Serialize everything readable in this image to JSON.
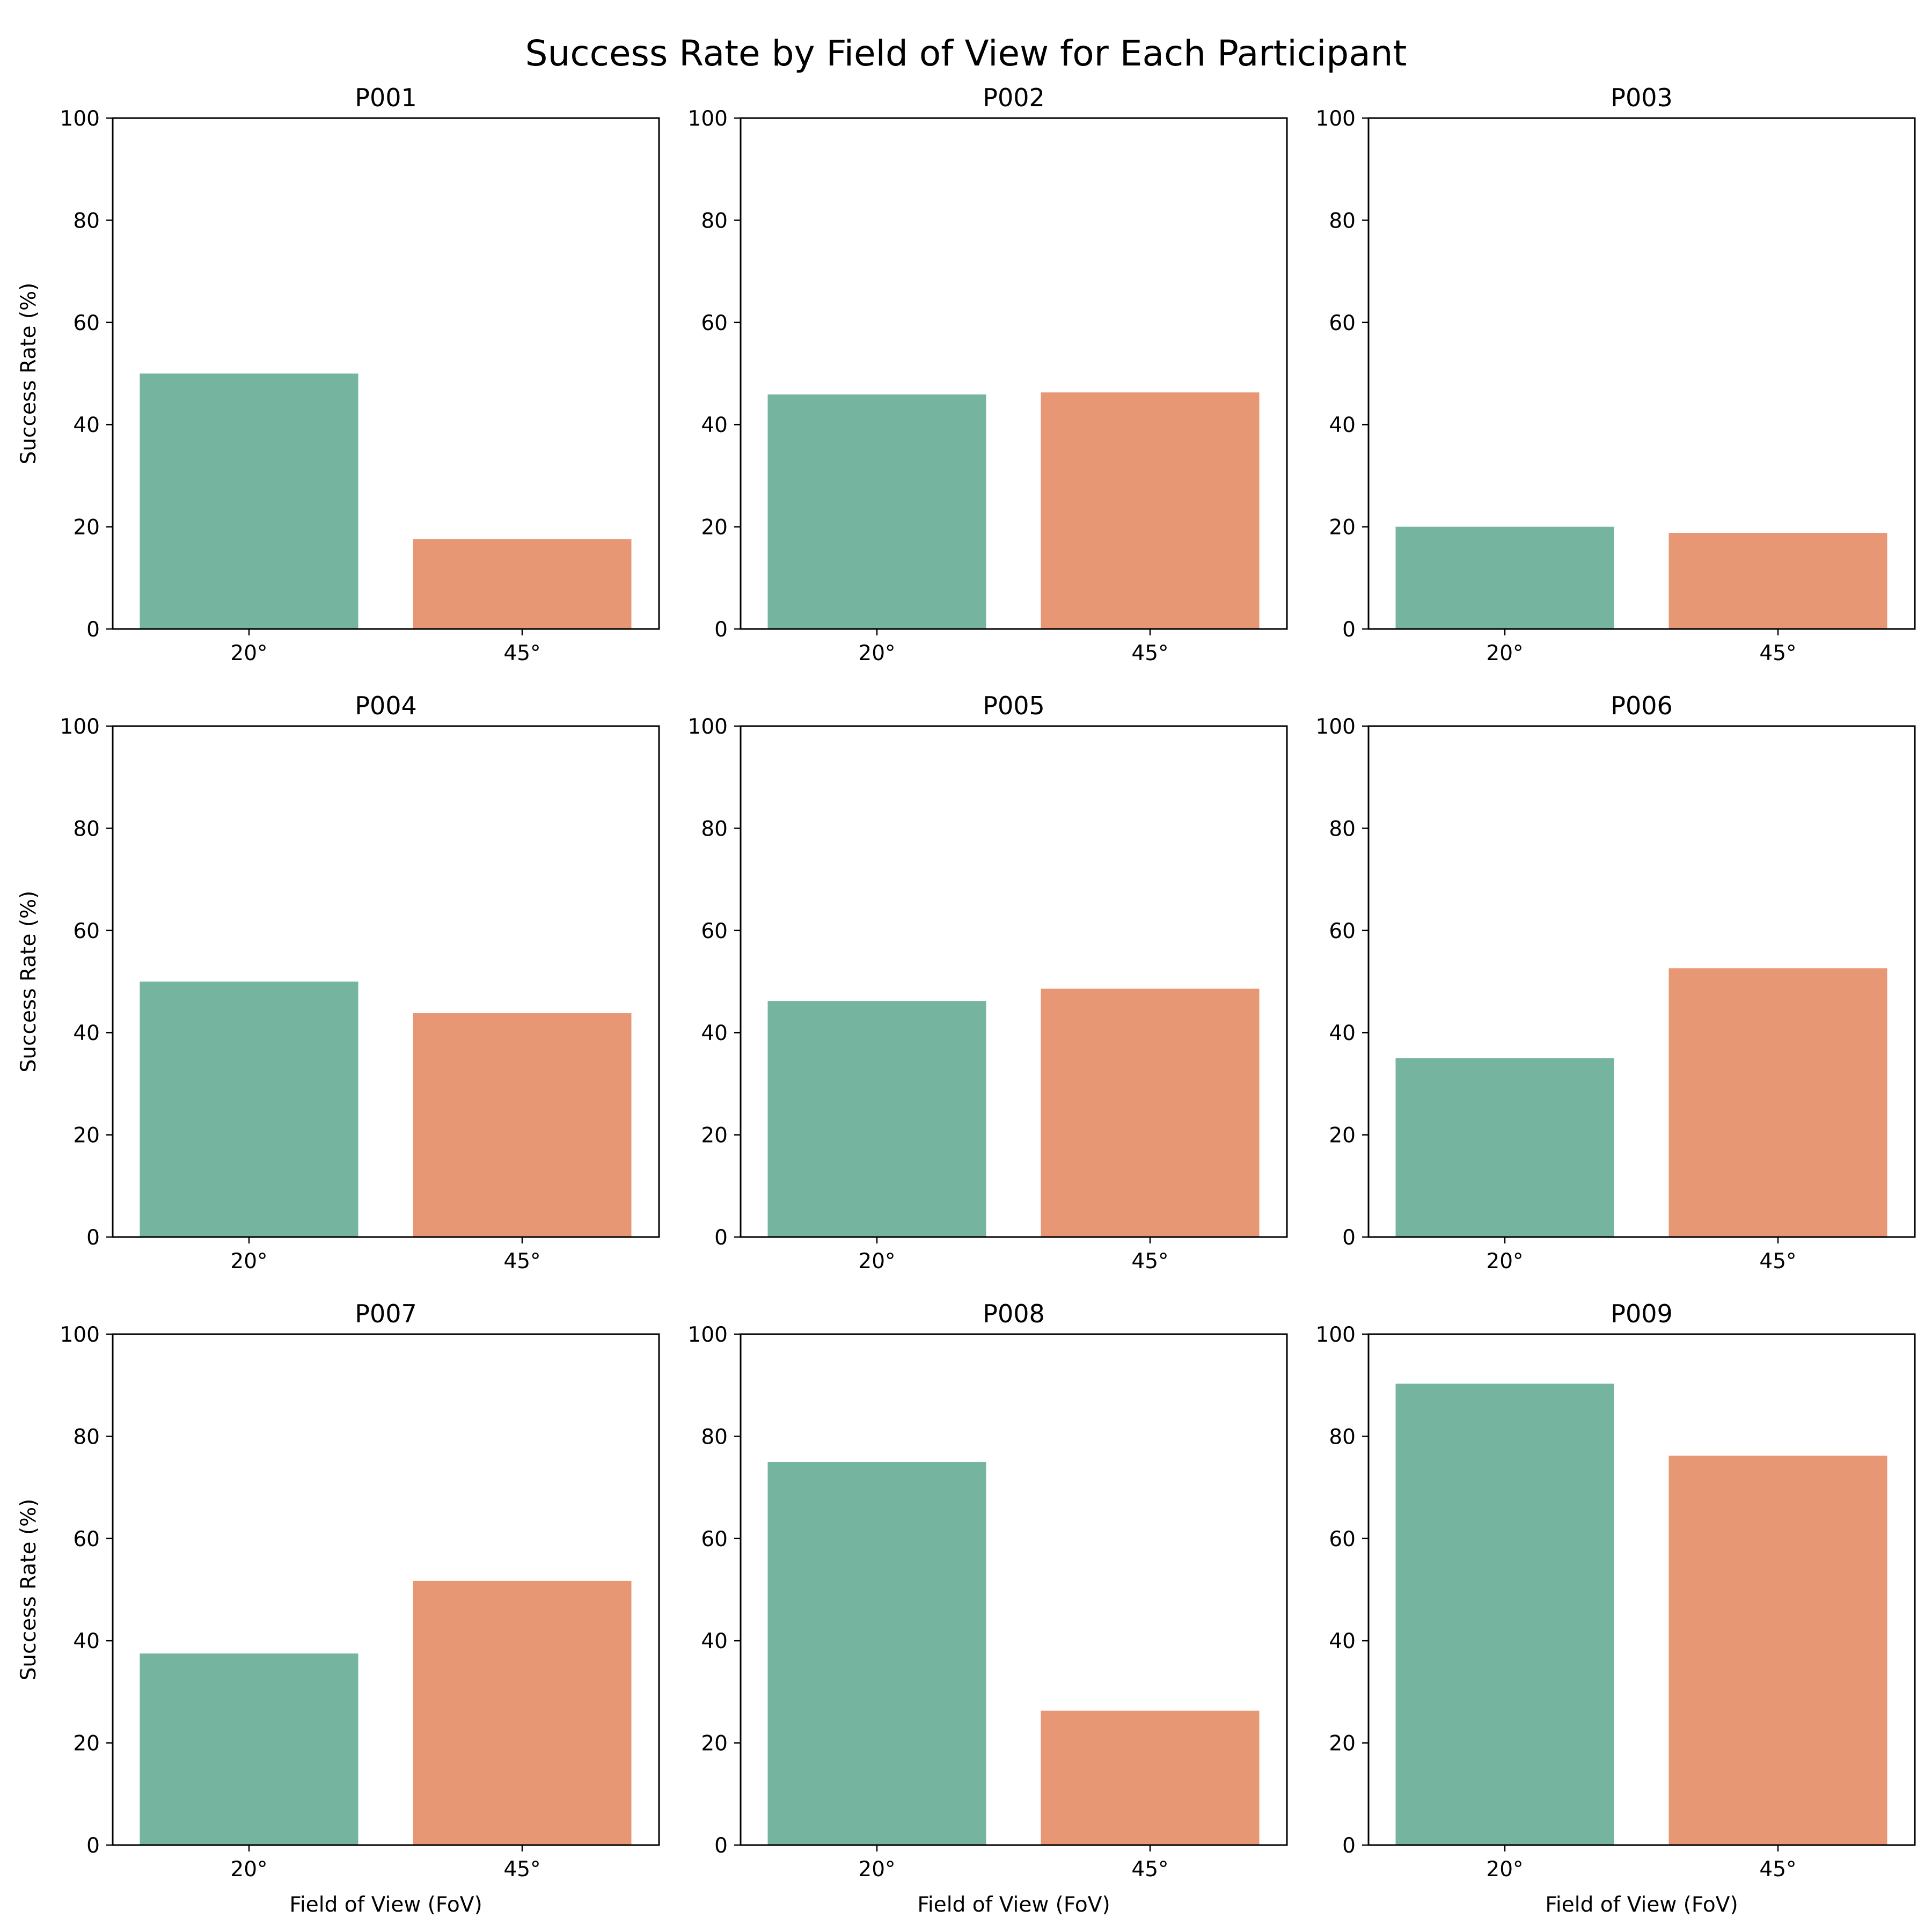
{
  "chart_data": {
    "type": "bar",
    "title": "Success Rate by Field of View for Each Participant",
    "xlabel": "Field of View (FoV)",
    "ylabel": "Success Rate (%)",
    "ylim": [
      0,
      100
    ],
    "yticks": [
      0,
      20,
      40,
      60,
      80,
      100
    ],
    "grid": false,
    "categories": [
      "20°",
      "45°"
    ],
    "colors": [
      "#75b5a0",
      "#e89775"
    ],
    "panels": [
      {
        "name": "P001",
        "values": [
          50.0,
          17.6
        ]
      },
      {
        "name": "P002",
        "values": [
          45.9,
          46.3
        ]
      },
      {
        "name": "P003",
        "values": [
          20.0,
          18.8
        ]
      },
      {
        "name": "P004",
        "values": [
          50.0,
          43.8
        ]
      },
      {
        "name": "P005",
        "values": [
          46.2,
          48.6
        ]
      },
      {
        "name": "P006",
        "values": [
          35.0,
          52.6
        ]
      },
      {
        "name": "P007",
        "values": [
          37.5,
          51.7
        ]
      },
      {
        "name": "P008",
        "values": [
          75.0,
          26.3
        ]
      },
      {
        "name": "P009",
        "values": [
          90.3,
          76.2
        ]
      }
    ]
  }
}
